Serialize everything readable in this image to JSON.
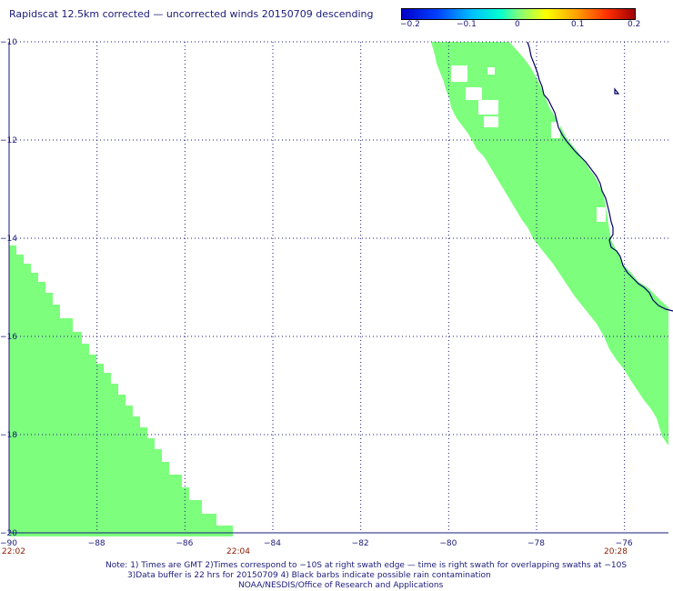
{
  "title": "Rapidscat 12.5km corrected — uncorrected winds 20150709 descending",
  "colorbar": {
    "labels": [
      "−0.2",
      "−0.1",
      "0",
      "0.1",
      "0.2"
    ],
    "colors": [
      "#0000c8",
      "#0040ff",
      "#00bfff",
      "#00ffd0",
      "#7dff7d",
      "#ffff00",
      "#ffa000",
      "#ff3000",
      "#a00000"
    ]
  },
  "map": {
    "lon_range": [
      -90,
      -75
    ],
    "lat_range": [
      -20,
      -10
    ],
    "lat_ticks": [
      "−10",
      "−12",
      "−14",
      "−16",
      "−18",
      "−20"
    ],
    "lon_ticks": [
      "−90",
      "−88",
      "−86",
      "−84",
      "−82",
      "−80",
      "−78",
      "−76"
    ],
    "swath_color": "#7dff7d",
    "coast_color": "#000066",
    "grid": "dotted"
  },
  "times": {
    "left_start": "22:02",
    "left_end": "22:04",
    "right": "20:28"
  },
  "notes": {
    "line1": "Note: 1) Times are GMT 2)Times correspond to −10S at right swath edge — time is right swath for overlapping swaths at −10S",
    "line2": "3)Data buffer is 22 hrs for 20150709 4) Black barbs indicate possible rain contamination",
    "line3": "NOAA/NESDIS/Office of Research and Applications"
  }
}
